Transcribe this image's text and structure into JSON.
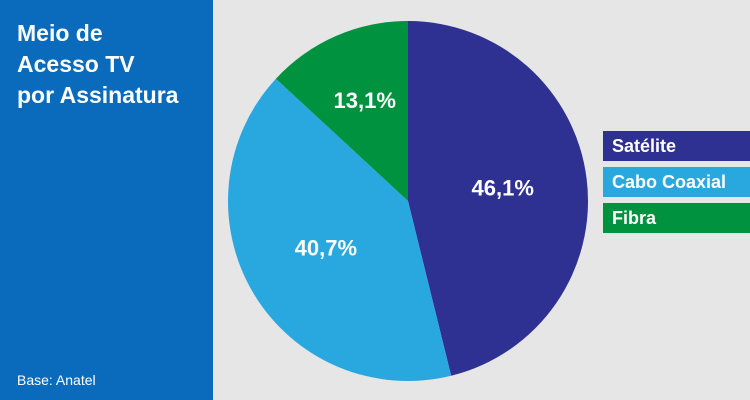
{
  "title_lines": [
    "Meio de",
    "Acesso TV",
    "por Assinatura"
  ],
  "source": "Base: Anatel",
  "colors": {
    "sidebar": "#0a6bbd",
    "background": "#e6e6e6",
    "satelite": "#2e3192",
    "cabo": "#29a8e0",
    "fibra": "#00923f"
  },
  "chart_data": {
    "type": "pie",
    "title": "Meio de Acesso TV por Assinatura",
    "slices": [
      {
        "name": "Satélite",
        "value": 46.1,
        "label": "46,1%",
        "color": "#2e3192"
      },
      {
        "name": "Cabo Coaxial",
        "value": 40.7,
        "label": "40,7%",
        "color": "#29a8e0"
      },
      {
        "name": "Fibra",
        "value": 13.1,
        "label": "13,1%",
        "color": "#00923f"
      }
    ],
    "start_angle": "12 o'clock",
    "direction": "clockwise",
    "legend_position": "right"
  }
}
